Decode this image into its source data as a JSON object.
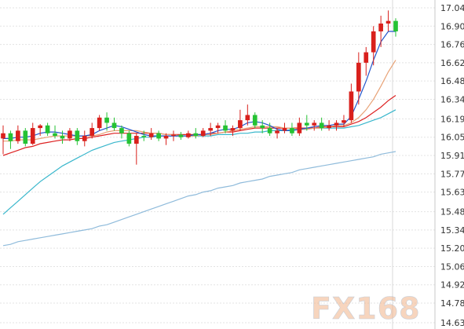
{
  "chart_data": {
    "type": "candlestick",
    "title": "",
    "xlabel": "",
    "ylabel": "",
    "ylim": [
      14.63,
      17.08
    ],
    "y_ticks": [
      "17.04",
      "16.90",
      "16.76",
      "16.62",
      "16.48",
      "16.34",
      "16.19",
      "16.05",
      "15.91",
      "15.77",
      "15.63",
      "15.48",
      "15.34",
      "15.20",
      "15.06",
      "14.92",
      "14.78",
      "14.63"
    ],
    "grid": true,
    "colors": {
      "up": "#d9201c",
      "down": "#25c233",
      "ma_fast": "#2255cc",
      "ma_mid": "#e8a276",
      "ma_slow": "#dd2222",
      "ma_long": "#3ab7cc",
      "ma_longest": "#8fbbdb"
    },
    "candles": [
      [
        16.04,
        16.14,
        15.92,
        16.08
      ],
      [
        16.08,
        16.1,
        15.96,
        16.02
      ],
      [
        16.02,
        16.14,
        16.0,
        16.1
      ],
      [
        16.1,
        16.12,
        15.98,
        16.0
      ],
      [
        16.0,
        16.16,
        15.99,
        16.12
      ],
      [
        16.12,
        16.15,
        16.06,
        16.14
      ],
      [
        16.14,
        16.16,
        16.06,
        16.08
      ],
      [
        16.08,
        16.14,
        16.04,
        16.06
      ],
      [
        16.06,
        16.1,
        16.0,
        16.04
      ],
      [
        16.04,
        16.12,
        16.02,
        16.1
      ],
      [
        16.1,
        16.12,
        15.99,
        16.02
      ],
      [
        16.02,
        16.1,
        15.98,
        16.06
      ],
      [
        16.06,
        16.16,
        16.04,
        16.12
      ],
      [
        16.12,
        16.22,
        16.1,
        16.2
      ],
      [
        16.2,
        16.24,
        16.1,
        16.16
      ],
      [
        16.16,
        16.2,
        16.1,
        16.12
      ],
      [
        16.12,
        16.14,
        16.04,
        16.08
      ],
      [
        16.08,
        16.1,
        15.98,
        16.0
      ],
      [
        16.0,
        16.08,
        15.84,
        16.06
      ],
      [
        16.06,
        16.1,
        16.02,
        16.05
      ],
      [
        16.05,
        16.12,
        16.03,
        16.08
      ],
      [
        16.08,
        16.1,
        16.02,
        16.04
      ],
      [
        16.04,
        16.08,
        15.99,
        16.06
      ],
      [
        16.06,
        16.1,
        16.02,
        16.07
      ],
      [
        16.07,
        16.09,
        16.03,
        16.05
      ],
      [
        16.05,
        16.1,
        16.04,
        16.08
      ],
      [
        16.08,
        16.12,
        16.04,
        16.06
      ],
      [
        16.06,
        16.12,
        16.05,
        16.1
      ],
      [
        16.1,
        16.16,
        16.06,
        16.12
      ],
      [
        16.12,
        16.16,
        16.08,
        16.14
      ],
      [
        16.14,
        16.18,
        16.08,
        16.1
      ],
      [
        16.1,
        16.14,
        16.06,
        16.12
      ],
      [
        16.12,
        16.26,
        16.1,
        16.18
      ],
      [
        16.18,
        16.3,
        16.14,
        16.22
      ],
      [
        16.22,
        16.24,
        16.12,
        16.14
      ],
      [
        16.14,
        16.18,
        16.08,
        16.12
      ],
      [
        16.12,
        16.16,
        16.06,
        16.08
      ],
      [
        16.08,
        16.12,
        16.04,
        16.1
      ],
      [
        16.1,
        16.16,
        16.08,
        16.12
      ],
      [
        16.12,
        16.16,
        16.06,
        16.08
      ],
      [
        16.08,
        16.2,
        16.06,
        16.16
      ],
      [
        16.16,
        16.22,
        16.1,
        16.14
      ],
      [
        16.14,
        16.18,
        16.1,
        16.16
      ],
      [
        16.16,
        16.2,
        16.1,
        16.12
      ],
      [
        16.12,
        16.18,
        16.1,
        16.14
      ],
      [
        16.14,
        16.18,
        16.1,
        16.16
      ],
      [
        16.16,
        16.22,
        16.13,
        16.18
      ],
      [
        16.18,
        16.46,
        16.16,
        16.4
      ],
      [
        16.4,
        16.7,
        16.3,
        16.62
      ],
      [
        16.62,
        16.74,
        16.52,
        16.7
      ],
      [
        16.7,
        16.9,
        16.6,
        16.86
      ],
      [
        16.86,
        16.98,
        16.74,
        16.92
      ],
      [
        16.92,
        17.02,
        16.86,
        16.94
      ],
      [
        16.94,
        16.96,
        16.82,
        16.86
      ]
    ],
    "ma_fast": [
      16.04,
      16.04,
      16.05,
      16.05,
      16.06,
      16.08,
      16.09,
      16.09,
      16.08,
      16.07,
      16.06,
      16.06,
      16.07,
      16.1,
      16.12,
      16.14,
      16.13,
      16.11,
      16.09,
      16.07,
      16.06,
      16.06,
      16.06,
      16.06,
      16.06,
      16.06,
      16.07,
      16.07,
      16.08,
      16.1,
      16.11,
      16.11,
      16.13,
      16.16,
      16.17,
      16.16,
      16.14,
      16.11,
      16.1,
      16.1,
      16.11,
      16.12,
      16.13,
      16.14,
      16.14,
      16.15,
      16.15,
      16.21,
      16.34,
      16.48,
      16.64,
      16.78,
      16.86,
      16.86
    ],
    "ma_mid": [
      16.02,
      16.02,
      16.03,
      16.03,
      16.03,
      16.04,
      16.05,
      16.06,
      16.06,
      16.06,
      16.06,
      16.06,
      16.06,
      16.07,
      16.09,
      16.1,
      16.1,
      16.1,
      16.1,
      16.09,
      16.08,
      16.08,
      16.07,
      16.07,
      16.06,
      16.06,
      16.06,
      16.07,
      16.07,
      16.08,
      16.09,
      16.1,
      16.11,
      16.12,
      16.13,
      16.13,
      16.13,
      16.13,
      16.12,
      16.12,
      16.11,
      16.11,
      16.12,
      16.12,
      16.13,
      16.14,
      16.14,
      16.16,
      16.2,
      16.26,
      16.34,
      16.44,
      16.55,
      16.64
    ],
    "ma_slow": [
      15.91,
      15.93,
      15.95,
      15.97,
      15.98,
      16.0,
      16.01,
      16.02,
      16.03,
      16.03,
      16.04,
      16.04,
      16.05,
      16.06,
      16.07,
      16.08,
      16.08,
      16.08,
      16.08,
      16.08,
      16.08,
      16.08,
      16.07,
      16.07,
      16.07,
      16.07,
      16.07,
      16.07,
      16.08,
      16.08,
      16.09,
      16.09,
      16.1,
      16.11,
      16.12,
      16.12,
      16.12,
      16.12,
      16.12,
      16.12,
      16.12,
      16.12,
      16.12,
      16.13,
      16.13,
      16.13,
      16.13,
      16.15,
      16.17,
      16.2,
      16.24,
      16.28,
      16.33,
      16.37
    ],
    "ma_long": [
      15.46,
      15.51,
      15.56,
      15.61,
      15.66,
      15.71,
      15.75,
      15.79,
      15.83,
      15.86,
      15.89,
      15.92,
      15.95,
      15.97,
      15.99,
      16.01,
      16.02,
      16.03,
      16.04,
      16.05,
      16.05,
      16.06,
      16.06,
      16.06,
      16.06,
      16.06,
      16.06,
      16.06,
      16.06,
      16.07,
      16.07,
      16.07,
      16.08,
      16.08,
      16.09,
      16.09,
      16.1,
      16.1,
      16.1,
      16.11,
      16.11,
      16.11,
      16.12,
      16.12,
      16.12,
      16.12,
      16.12,
      16.13,
      16.14,
      16.16,
      16.18,
      16.2,
      16.23,
      16.26
    ],
    "ma_longest": [
      15.22,
      15.23,
      15.25,
      15.26,
      15.27,
      15.28,
      15.29,
      15.3,
      15.31,
      15.32,
      15.33,
      15.34,
      15.35,
      15.37,
      15.38,
      15.4,
      15.42,
      15.44,
      15.46,
      15.48,
      15.5,
      15.52,
      15.54,
      15.56,
      15.58,
      15.6,
      15.61,
      15.63,
      15.64,
      15.66,
      15.67,
      15.68,
      15.7,
      15.71,
      15.72,
      15.73,
      15.75,
      15.76,
      15.77,
      15.78,
      15.8,
      15.81,
      15.82,
      15.83,
      15.84,
      15.85,
      15.86,
      15.87,
      15.88,
      15.89,
      15.9,
      15.92,
      15.93,
      15.94
    ]
  },
  "logo": {
    "text": "FX168"
  }
}
